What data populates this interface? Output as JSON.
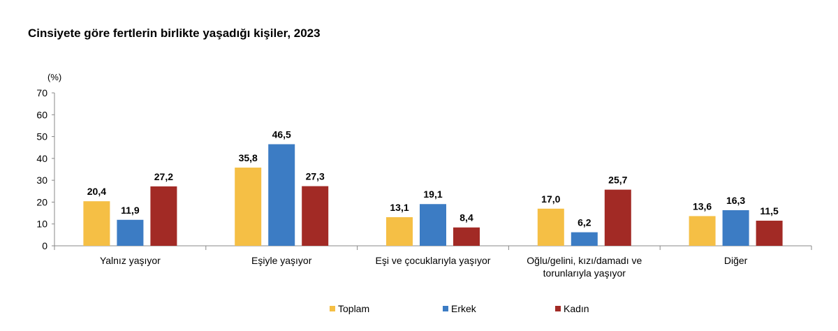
{
  "title": "Cinsiyete göre fertlerin birlikte yaşadığı kişiler, 2023",
  "chart_data": {
    "type": "bar",
    "title": "Cinsiyete göre fertlerin birlikte yaşadığı kişiler, 2023",
    "ylabel": "(%)",
    "xlabel": "",
    "ylim": [
      0,
      70
    ],
    "yticks": [
      "0",
      "10",
      "20",
      "30",
      "40",
      "50",
      "60",
      "70"
    ],
    "grid": false,
    "legend_position": "bottom",
    "categories": [
      [
        "Yalnız yaşıyor"
      ],
      [
        "Eşiyle yaşıyor"
      ],
      [
        "Eşi ve çocuklarıyla yaşıyor"
      ],
      [
        "Oğlu/gelini, kızı/damadı ve",
        "torunlarıyla yaşıyor"
      ],
      [
        "Diğer"
      ]
    ],
    "series": [
      {
        "name": "Toplam",
        "color": "#F5BF45",
        "values": [
          20.4,
          35.8,
          13.1,
          17.0,
          13.6
        ],
        "labels": [
          "20,4",
          "35,8",
          "13,1",
          "17,0",
          "13,6"
        ]
      },
      {
        "name": "Erkek",
        "color": "#3C7CC4",
        "values": [
          11.9,
          46.5,
          19.1,
          6.2,
          16.3
        ],
        "labels": [
          "11,9",
          "46,5",
          "19,1",
          "6,2",
          "16,3"
        ]
      },
      {
        "name": "Kadın",
        "color": "#A22A25",
        "values": [
          27.2,
          27.3,
          8.4,
          25.7,
          11.5
        ],
        "labels": [
          "27,2",
          "27,3",
          "8,4",
          "25,7",
          "11,5"
        ]
      }
    ]
  }
}
